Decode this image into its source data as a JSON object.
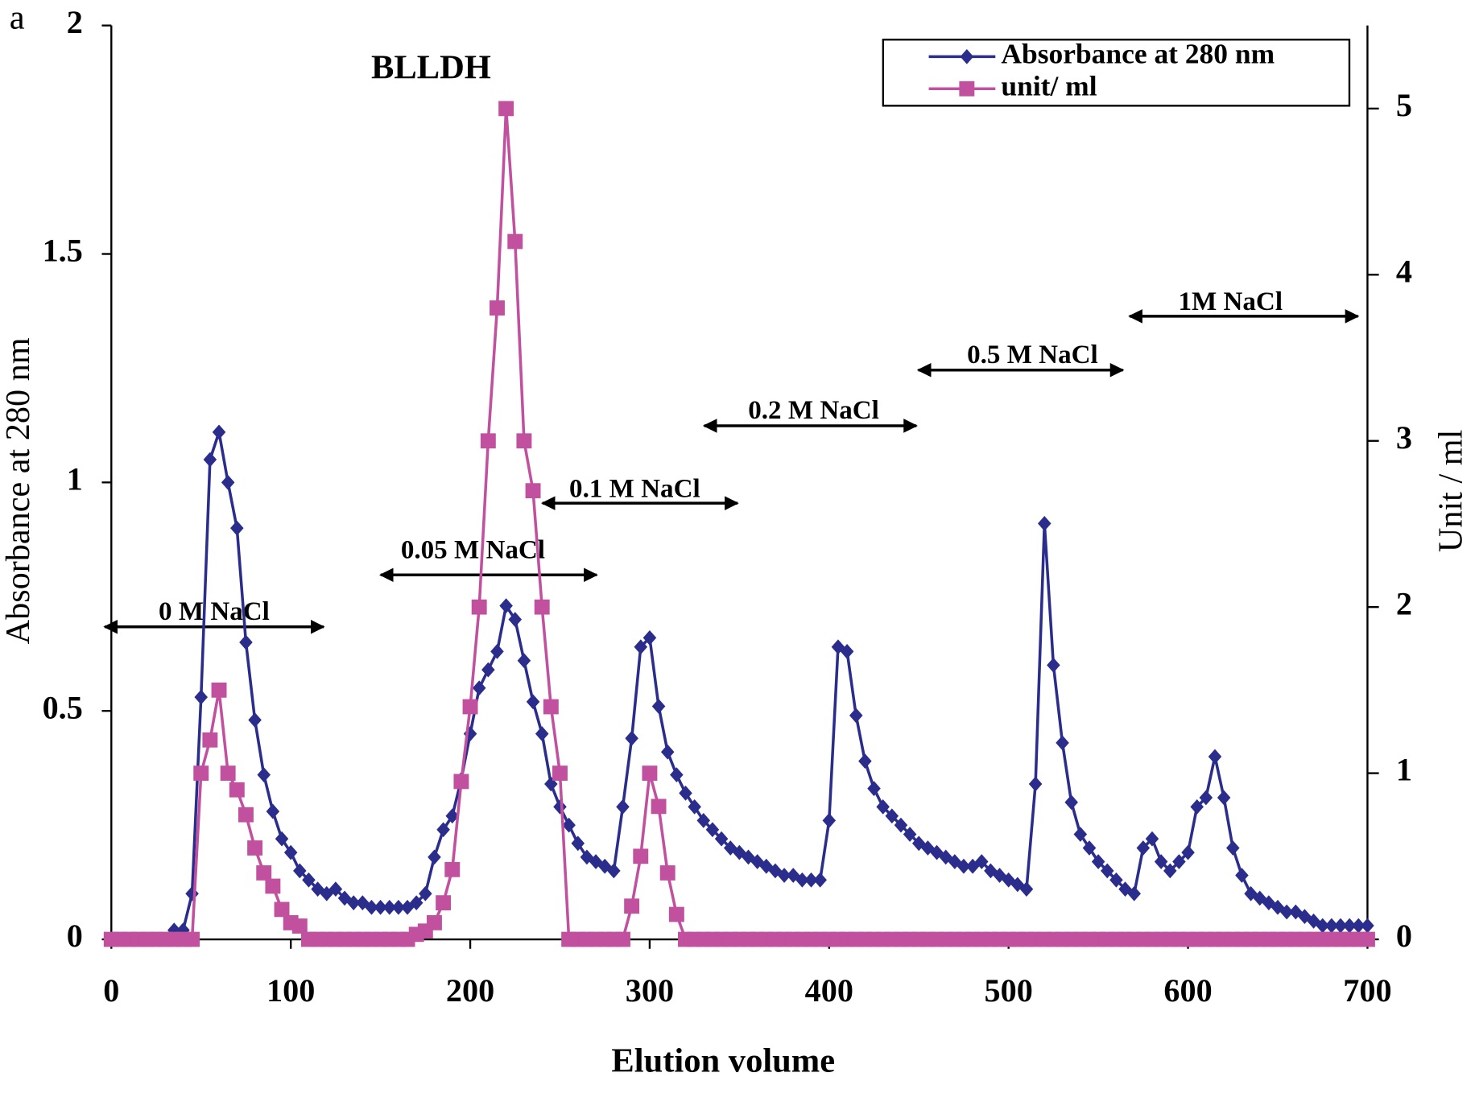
{
  "chart_data": {
    "type": "line",
    "panel_label": "a",
    "title": "BLLDH",
    "xlabel": "Elution volume",
    "ylabel": "Absorbance at 280 nm",
    "y2label": "Unit / ml",
    "legend": "upper right",
    "annotations": [
      "0 M NaCl",
      "0.05 M NaCl",
      "0.1 M NaCl",
      "0.2 M NaCl",
      "0.5 M NaCl",
      "1M NaCl"
    ],
    "xlim": [
      0,
      700
    ],
    "xticks": [
      0,
      100,
      200,
      300,
      400,
      500,
      600,
      700
    ],
    "ylim": [
      0,
      2
    ],
    "yticks": [
      0,
      0.5,
      1,
      1.5,
      2
    ],
    "y2lim": [
      0,
      5.5
    ],
    "y2ticks": [
      0,
      1,
      2,
      3,
      4,
      5
    ],
    "x": [
      0,
      5,
      10,
      15,
      20,
      25,
      30,
      35,
      40,
      45,
      50,
      55,
      60,
      65,
      70,
      75,
      80,
      85,
      90,
      95,
      100,
      105,
      110,
      115,
      120,
      125,
      130,
      135,
      140,
      145,
      150,
      155,
      160,
      165,
      170,
      175,
      180,
      185,
      190,
      195,
      200,
      205,
      210,
      215,
      220,
      225,
      230,
      235,
      240,
      245,
      250,
      255,
      260,
      265,
      270,
      275,
      280,
      285,
      290,
      295,
      300,
      305,
      310,
      315,
      320,
      325,
      330,
      335,
      340,
      345,
      350,
      355,
      360,
      365,
      370,
      375,
      380,
      385,
      390,
      395,
      400,
      405,
      410,
      415,
      420,
      425,
      430,
      435,
      440,
      445,
      450,
      455,
      460,
      465,
      470,
      475,
      480,
      485,
      490,
      495,
      500,
      505,
      510,
      515,
      520,
      525,
      530,
      535,
      540,
      545,
      550,
      555,
      560,
      565,
      570,
      575,
      580,
      585,
      590,
      595,
      600,
      605,
      610,
      615,
      620,
      625,
      630,
      635,
      640,
      645,
      650,
      655,
      660,
      665,
      670,
      675,
      680,
      685,
      690,
      695,
      700
    ],
    "series": [
      {
        "name": "Absorbance at 280 nm",
        "color": "#2b2d8c",
        "marker": "diamond",
        "axis": "y",
        "values": [
          0,
          0,
          0,
          0,
          0,
          0,
          0,
          0.02,
          0.02,
          0.1,
          0.53,
          1.05,
          1.11,
          1.0,
          0.9,
          0.65,
          0.48,
          0.36,
          0.28,
          0.22,
          0.19,
          0.15,
          0.13,
          0.11,
          0.1,
          0.11,
          0.09,
          0.08,
          0.08,
          0.07,
          0.07,
          0.07,
          0.07,
          0.07,
          0.08,
          0.1,
          0.18,
          0.24,
          0.27,
          0.35,
          0.45,
          0.55,
          0.59,
          0.63,
          0.73,
          0.7,
          0.61,
          0.52,
          0.45,
          0.34,
          0.29,
          0.25,
          0.21,
          0.18,
          0.17,
          0.16,
          0.15,
          0.29,
          0.44,
          0.64,
          0.66,
          0.51,
          0.41,
          0.36,
          0.32,
          0.29,
          0.26,
          0.24,
          0.22,
          0.2,
          0.19,
          0.18,
          0.17,
          0.16,
          0.15,
          0.14,
          0.14,
          0.13,
          0.13,
          0.13,
          0.26,
          0.64,
          0.63,
          0.49,
          0.39,
          0.33,
          0.29,
          0.27,
          0.25,
          0.23,
          0.21,
          0.2,
          0.19,
          0.18,
          0.17,
          0.16,
          0.16,
          0.17,
          0.15,
          0.14,
          0.13,
          0.12,
          0.11,
          0.34,
          0.91,
          0.6,
          0.43,
          0.3,
          0.23,
          0.2,
          0.17,
          0.15,
          0.13,
          0.11,
          0.1,
          0.2,
          0.22,
          0.17,
          0.15,
          0.17,
          0.19,
          0.29,
          0.31,
          0.4,
          0.31,
          0.2,
          0.14,
          0.1,
          0.09,
          0.08,
          0.07,
          0.06,
          0.06,
          0.05,
          0.04,
          0.03,
          0.03,
          0.03,
          0.03,
          0.03,
          0.03
        ]
      },
      {
        "name": "unit/ ml",
        "color": "#c1509f",
        "marker": "square",
        "axis": "y2",
        "values": [
          0,
          0,
          0,
          0,
          0,
          0,
          0,
          0,
          0,
          0,
          1.0,
          1.2,
          1.5,
          1.0,
          0.9,
          0.75,
          0.55,
          0.4,
          0.32,
          0.18,
          0.1,
          0.08,
          0,
          0,
          0,
          0,
          0,
          0,
          0,
          0,
          0,
          0,
          0,
          0,
          0.03,
          0.05,
          0.1,
          0.22,
          0.42,
          0.95,
          1.4,
          2.0,
          3.0,
          3.8,
          5.0,
          4.2,
          3.0,
          2.7,
          2.0,
          1.4,
          1.0,
          0,
          0,
          0,
          0,
          0,
          0,
          0,
          0.2,
          0.5,
          1.0,
          0.8,
          0.4,
          0.15,
          0,
          0,
          0,
          0,
          0,
          0,
          0,
          0,
          0,
          0,
          0,
          0,
          0,
          0,
          0,
          0,
          0,
          0,
          0,
          0,
          0,
          0,
          0,
          0,
          0,
          0,
          0,
          0,
          0,
          0,
          0,
          0,
          0,
          0,
          0,
          0,
          0,
          0,
          0,
          0,
          0,
          0,
          0,
          0,
          0,
          0,
          0,
          0,
          0,
          0,
          0,
          0,
          0,
          0,
          0,
          0,
          0,
          0,
          0,
          0,
          0,
          0,
          0,
          0,
          0,
          0,
          0,
          0,
          0,
          0,
          0,
          0,
          0,
          0,
          0,
          0,
          0
        ]
      }
    ]
  }
}
